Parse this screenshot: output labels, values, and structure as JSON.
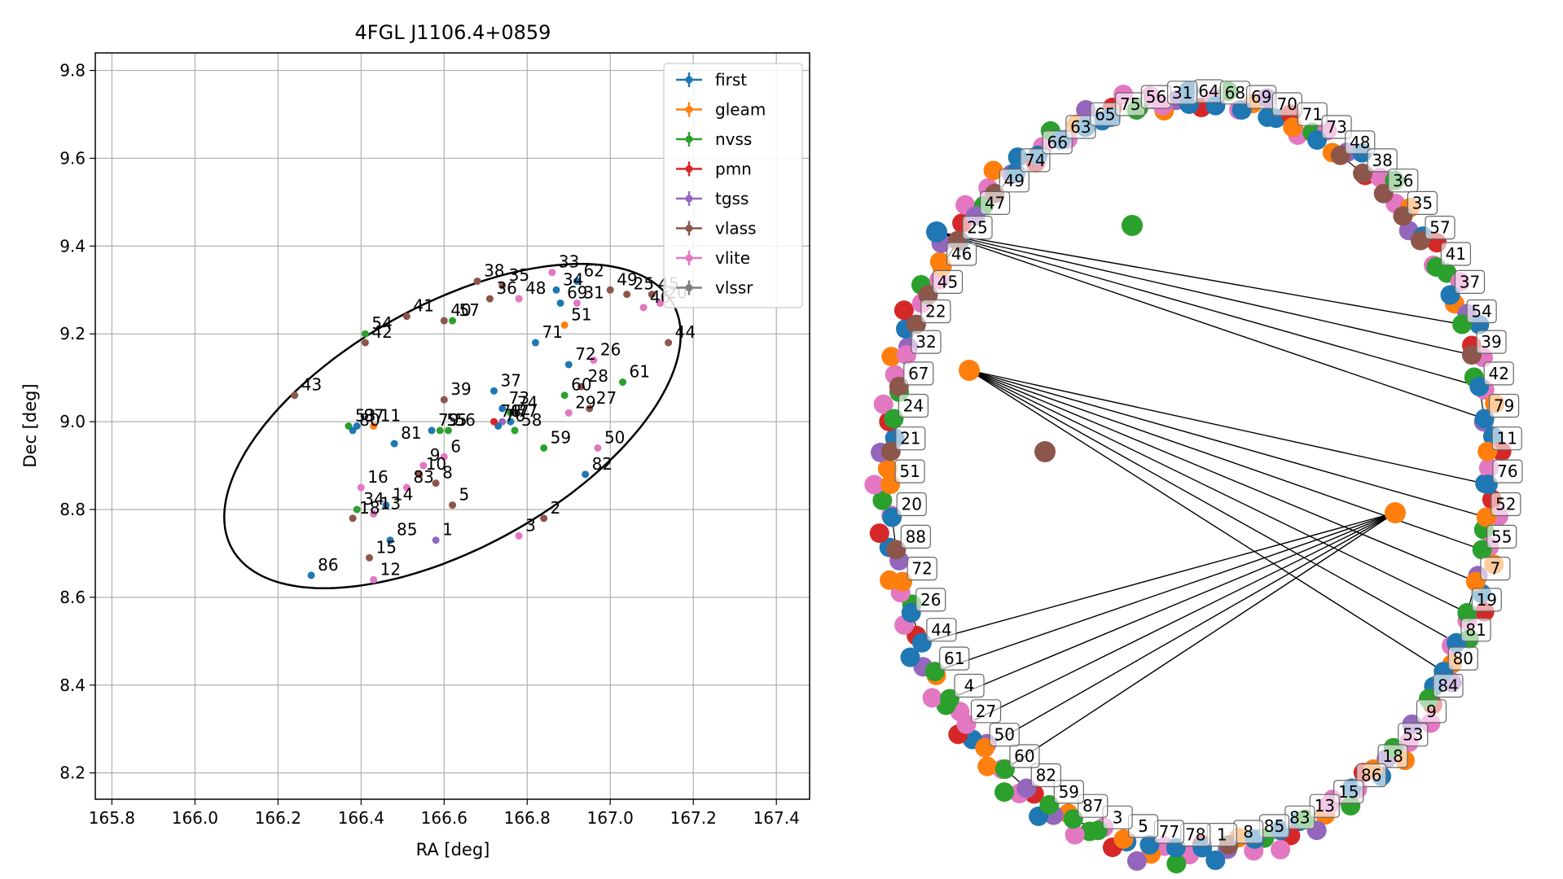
{
  "colors": {
    "first": "#1f77b4",
    "gleam": "#ff7f0e",
    "nvss": "#2ca02c",
    "pmn": "#d62728",
    "tgss": "#9467bd",
    "vlass": "#8c564b",
    "vlite": "#e377c2",
    "vlssr": "#7f7f7f"
  },
  "chart_data": [
    {
      "type": "scatter",
      "title": "4FGL J1106.4+0859",
      "xlabel": "RA [deg]",
      "ylabel": "Dec [deg]",
      "xlim": [
        165.76,
        167.48
      ],
      "ylim": [
        8.14,
        9.84
      ],
      "xticks": [
        165.8,
        166.0,
        166.2,
        166.4,
        166.6,
        166.8,
        167.0,
        167.2,
        167.4
      ],
      "xtick_labels": [
        "165.8",
        "166.0",
        "166.2",
        "166.4",
        "166.6",
        "166.8",
        "167.0",
        "167.2",
        "167.4"
      ],
      "yticks": [
        8.2,
        8.4,
        8.6,
        8.8,
        9.0,
        9.2,
        9.4,
        9.6,
        9.8
      ],
      "ytick_labels": [
        "8.2",
        "8.4",
        "8.6",
        "8.8",
        "9.0",
        "9.2",
        "9.4",
        "9.6",
        "9.8"
      ],
      "grid": true,
      "legend_position": "top-right",
      "legend": [
        "first",
        "gleam",
        "nvss",
        "pmn",
        "tgss",
        "vlass",
        "vlite",
        "vlssr"
      ],
      "ellipse": {
        "center": [
          166.62,
          8.99
        ],
        "semi_major": 0.6,
        "semi_minor": 0.28,
        "angle_deg": 27
      },
      "points": [
        {
          "label": "86",
          "x": 166.28,
          "y": 8.65,
          "cat": "first"
        },
        {
          "label": "12",
          "x": 166.43,
          "y": 8.64,
          "cat": "vlite"
        },
        {
          "label": "15",
          "x": 166.42,
          "y": 8.69,
          "cat": "vlass"
        },
        {
          "label": "85",
          "x": 166.47,
          "y": 8.73,
          "cat": "first"
        },
        {
          "label": "1",
          "x": 166.58,
          "y": 8.73,
          "cat": "tgss"
        },
        {
          "label": "3",
          "x": 166.78,
          "y": 8.74,
          "cat": "vlite"
        },
        {
          "label": "2",
          "x": 166.84,
          "y": 8.78,
          "cat": "vlass"
        },
        {
          "label": "16",
          "x": 166.4,
          "y": 8.85,
          "cat": "vlite"
        },
        {
          "label": "34",
          "x": 166.39,
          "y": 8.8,
          "cat": "nvss"
        },
        {
          "label": "18",
          "x": 166.38,
          "y": 8.78,
          "cat": "vlass"
        },
        {
          "label": "13",
          "x": 166.43,
          "y": 8.79,
          "cat": "vlite"
        },
        {
          "label": "14",
          "x": 166.46,
          "y": 8.81,
          "cat": "first"
        },
        {
          "label": "83",
          "x": 166.51,
          "y": 8.85,
          "cat": "vlite"
        },
        {
          "label": "10",
          "x": 166.54,
          "y": 8.88,
          "cat": "vlass"
        },
        {
          "label": "8",
          "x": 166.58,
          "y": 8.86,
          "cat": "vlass"
        },
        {
          "label": "9",
          "x": 166.55,
          "y": 8.9,
          "cat": "vlite"
        },
        {
          "label": "5",
          "x": 166.62,
          "y": 8.81,
          "cat": "vlass"
        },
        {
          "label": "6",
          "x": 166.6,
          "y": 8.92,
          "cat": "vlite"
        },
        {
          "label": "43",
          "x": 166.24,
          "y": 9.06,
          "cat": "vlass"
        },
        {
          "label": "53",
          "x": 166.37,
          "y": 8.99,
          "cat": "nvss"
        },
        {
          "label": "87",
          "x": 166.39,
          "y": 8.99,
          "cat": "first"
        },
        {
          "label": "80",
          "x": 166.38,
          "y": 8.98,
          "cat": "first"
        },
        {
          "label": "11",
          "x": 166.43,
          "y": 8.99,
          "cat": "gleam"
        },
        {
          "label": "81",
          "x": 166.48,
          "y": 8.95,
          "cat": "first"
        },
        {
          "label": "79",
          "x": 166.57,
          "y": 8.98,
          "cat": "first"
        },
        {
          "label": "55",
          "x": 166.59,
          "y": 8.98,
          "cat": "nvss"
        },
        {
          "label": "56",
          "x": 166.61,
          "y": 8.98,
          "cat": "nvss"
        },
        {
          "label": "39",
          "x": 166.6,
          "y": 9.05,
          "cat": "vlass"
        },
        {
          "label": "37",
          "x": 166.72,
          "y": 9.07,
          "cat": "first"
        },
        {
          "label": "73",
          "x": 166.74,
          "y": 9.03,
          "cat": "first"
        },
        {
          "label": "74",
          "x": 166.76,
          "y": 9.02,
          "cat": "nvss"
        },
        {
          "label": "77",
          "x": 166.76,
          "y": 9.0,
          "cat": "first"
        },
        {
          "label": "47",
          "x": 166.74,
          "y": 9.0,
          "cat": "tgss"
        },
        {
          "label": "76",
          "x": 166.73,
          "y": 8.99,
          "cat": "first"
        },
        {
          "label": "78",
          "x": 166.72,
          "y": 9.0,
          "cat": "pmn"
        },
        {
          "label": "58",
          "x": 166.77,
          "y": 8.98,
          "cat": "nvss"
        },
        {
          "label": "59",
          "x": 166.84,
          "y": 8.94,
          "cat": "nvss"
        },
        {
          "label": "50",
          "x": 166.97,
          "y": 8.94,
          "cat": "vlite"
        },
        {
          "label": "82",
          "x": 166.94,
          "y": 8.88,
          "cat": "first"
        },
        {
          "label": "29",
          "x": 166.9,
          "y": 9.02,
          "cat": "vlite"
        },
        {
          "label": "27",
          "x": 166.95,
          "y": 9.03,
          "cat": "vlass"
        },
        {
          "label": "60",
          "x": 166.89,
          "y": 9.06,
          "cat": "nvss"
        },
        {
          "label": "28",
          "x": 166.93,
          "y": 9.08,
          "cat": "vlass"
        },
        {
          "label": "61",
          "x": 167.03,
          "y": 9.09,
          "cat": "nvss"
        },
        {
          "label": "72",
          "x": 166.9,
          "y": 9.13,
          "cat": "first"
        },
        {
          "label": "26",
          "x": 166.96,
          "y": 9.14,
          "cat": "vlite"
        },
        {
          "label": "71",
          "x": 166.82,
          "y": 9.18,
          "cat": "first"
        },
        {
          "label": "44",
          "x": 167.14,
          "y": 9.18,
          "cat": "vlass"
        },
        {
          "label": "42",
          "x": 166.41,
          "y": 9.18,
          "cat": "vlass"
        },
        {
          "label": "54",
          "x": 166.41,
          "y": 9.2,
          "cat": "nvss"
        },
        {
          "label": "41",
          "x": 166.51,
          "y": 9.24,
          "cat": "vlass"
        },
        {
          "label": "40",
          "x": 166.6,
          "y": 9.23,
          "cat": "vlass"
        },
        {
          "label": "57",
          "x": 166.62,
          "y": 9.23,
          "cat": "nvss"
        },
        {
          "label": "38",
          "x": 166.68,
          "y": 9.32,
          "cat": "vlass"
        },
        {
          "label": "36",
          "x": 166.71,
          "y": 9.28,
          "cat": "vlass"
        },
        {
          "label": "35",
          "x": 166.74,
          "y": 9.31,
          "cat": "vlass"
        },
        {
          "label": "48",
          "x": 166.78,
          "y": 9.28,
          "cat": "vlite"
        },
        {
          "label": "33",
          "x": 166.86,
          "y": 9.34,
          "cat": "vlite"
        },
        {
          "label": "34",
          "x": 166.87,
          "y": 9.3,
          "cat": "first"
        },
        {
          "label": "62",
          "x": 166.92,
          "y": 9.32,
          "cat": "first"
        },
        {
          "label": "69",
          "x": 166.88,
          "y": 9.27,
          "cat": "first"
        },
        {
          "label": "31",
          "x": 166.92,
          "y": 9.27,
          "cat": "vlite"
        },
        {
          "label": "51",
          "x": 166.89,
          "y": 9.22,
          "cat": "gleam"
        },
        {
          "label": "49",
          "x": 167.0,
          "y": 9.3,
          "cat": "vlass"
        },
        {
          "label": "25",
          "x": 167.04,
          "y": 9.29,
          "cat": "vlass"
        },
        {
          "label": "46",
          "x": 167.08,
          "y": 9.26,
          "cat": "vlite"
        },
        {
          "label": "45",
          "x": 167.1,
          "y": 9.29,
          "cat": "vlass"
        },
        {
          "label": "20",
          "x": 167.12,
          "y": 9.27,
          "cat": "vlite"
        }
      ]
    },
    {
      "type": "network",
      "nodes": [
        {
          "label": "64",
          "cat": "first"
        },
        {
          "label": "68",
          "cat": "first"
        },
        {
          "label": "69",
          "cat": "first"
        },
        {
          "label": "70",
          "cat": "first"
        },
        {
          "label": "71",
          "cat": "gleam"
        },
        {
          "label": "73",
          "cat": "first"
        },
        {
          "label": "48",
          "cat": "vlass"
        },
        {
          "label": "38",
          "cat": "vlass"
        },
        {
          "label": "36",
          "cat": "vlass"
        },
        {
          "label": "35",
          "cat": "vlass"
        },
        {
          "label": "57",
          "cat": "vlass"
        },
        {
          "label": "41",
          "cat": "nvss"
        },
        {
          "label": "37",
          "cat": "first"
        },
        {
          "label": "54",
          "cat": "nvss"
        },
        {
          "label": "39",
          "cat": "vlass"
        },
        {
          "label": "42",
          "cat": "first"
        },
        {
          "label": "79",
          "cat": "first"
        },
        {
          "label": "11",
          "cat": "gleam"
        },
        {
          "label": "76",
          "cat": "first"
        },
        {
          "label": "52",
          "cat": "gleam"
        },
        {
          "label": "55",
          "cat": "nvss"
        },
        {
          "label": "7",
          "cat": "gleam"
        },
        {
          "label": "19",
          "cat": "nvss"
        },
        {
          "label": "81",
          "cat": "first"
        },
        {
          "label": "80",
          "cat": "first"
        },
        {
          "label": "84",
          "cat": "nvss"
        },
        {
          "label": "9",
          "cat": "tgss"
        },
        {
          "label": "53",
          "cat": "nvss"
        },
        {
          "label": "18",
          "cat": "gleam"
        },
        {
          "label": "86",
          "cat": "first"
        },
        {
          "label": "15",
          "cat": "vlite"
        },
        {
          "label": "13",
          "cat": "nvss"
        },
        {
          "label": "83",
          "cat": "first"
        },
        {
          "label": "85",
          "cat": "first"
        },
        {
          "label": "8",
          "cat": "vlass"
        },
        {
          "label": "1",
          "cat": "first"
        },
        {
          "label": "78",
          "cat": "first"
        },
        {
          "label": "77",
          "cat": "first"
        },
        {
          "label": "5",
          "cat": "gleam"
        },
        {
          "label": "3",
          "cat": "nvss"
        },
        {
          "label": "87",
          "cat": "nvss"
        },
        {
          "label": "59",
          "cat": "nvss"
        },
        {
          "label": "82",
          "cat": "tgss"
        },
        {
          "label": "60",
          "cat": "nvss"
        },
        {
          "label": "50",
          "cat": "gleam"
        },
        {
          "label": "27",
          "cat": "vlite"
        },
        {
          "label": "4",
          "cat": "nvss"
        },
        {
          "label": "61",
          "cat": "nvss"
        },
        {
          "label": "44",
          "cat": "first"
        },
        {
          "label": "26",
          "cat": "first"
        },
        {
          "label": "72",
          "cat": "gleam"
        },
        {
          "label": "88",
          "cat": "vlass"
        },
        {
          "label": "20",
          "cat": "first"
        },
        {
          "label": "51",
          "cat": "gleam"
        },
        {
          "label": "21",
          "cat": "vlass"
        },
        {
          "label": "24",
          "cat": "nvss"
        },
        {
          "label": "67",
          "cat": "vlass"
        },
        {
          "label": "32",
          "cat": "vlite"
        },
        {
          "label": "22",
          "cat": "vlass"
        },
        {
          "label": "45",
          "cat": "vlass"
        },
        {
          "label": "46",
          "cat": "gleam"
        },
        {
          "label": "25",
          "cat": "vlass"
        },
        {
          "label": "47",
          "cat": "tgss"
        },
        {
          "label": "49",
          "cat": "vlass"
        },
        {
          "label": "74",
          "cat": "first"
        },
        {
          "label": "66",
          "cat": "first"
        },
        {
          "label": "63",
          "cat": "first"
        },
        {
          "label": "65",
          "cat": "first"
        },
        {
          "label": "75",
          "cat": "first"
        },
        {
          "label": "56",
          "cat": "nvss"
        },
        {
          "label": "31",
          "cat": "vlite"
        }
      ]
    }
  ]
}
